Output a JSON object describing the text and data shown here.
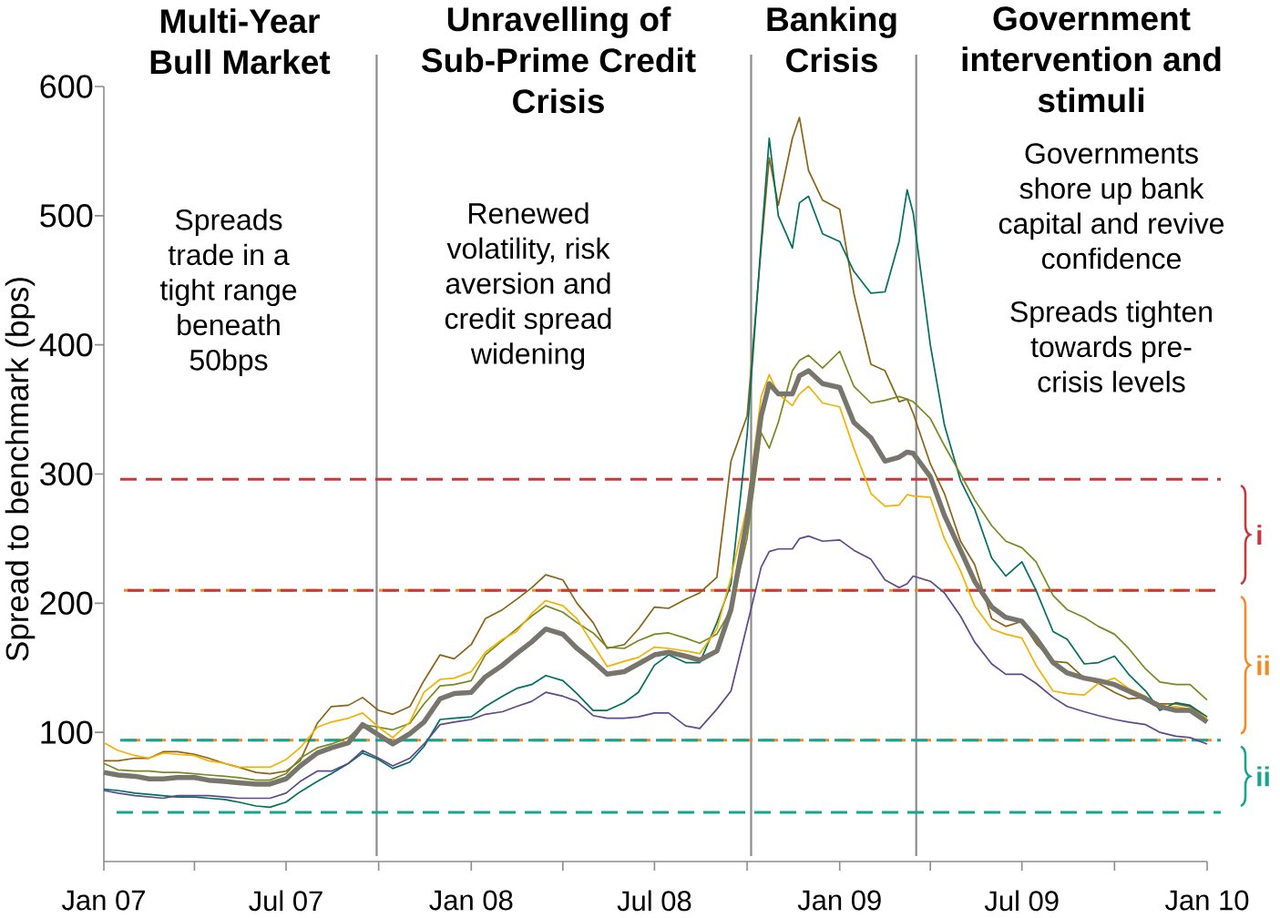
{
  "chart_data": {
    "type": "line",
    "ylabel": "Spread to benchmark (bps)",
    "x": [
      "2007-01-01",
      "2007-01-15",
      "2007-02-01",
      "2007-02-15",
      "2007-03-01",
      "2007-03-15",
      "2007-04-01",
      "2007-04-15",
      "2007-05-01",
      "2007-05-15",
      "2007-06-01",
      "2007-06-15",
      "2007-07-01",
      "2007-07-15",
      "2007-08-01",
      "2007-08-15",
      "2007-09-01",
      "2007-09-15",
      "2007-10-01",
      "2007-10-15",
      "2007-11-01",
      "2007-11-15",
      "2007-12-01",
      "2007-12-15",
      "2008-01-01",
      "2008-01-15",
      "2008-02-01",
      "2008-02-15",
      "2008-03-01",
      "2008-03-15",
      "2008-04-01",
      "2008-04-15",
      "2008-05-01",
      "2008-05-15",
      "2008-06-01",
      "2008-06-15",
      "2008-07-01",
      "2008-07-15",
      "2008-08-01",
      "2008-08-15",
      "2008-09-01",
      "2008-09-15",
      "2008-10-01",
      "2008-10-15",
      "2008-10-23",
      "2008-11-01",
      "2008-11-15",
      "2008-11-22",
      "2008-12-01",
      "2008-12-15",
      "2009-01-01",
      "2009-01-15",
      "2009-02-01",
      "2009-02-15",
      "2009-03-01",
      "2009-03-09",
      "2009-03-15",
      "2009-04-01",
      "2009-04-15",
      "2009-05-01",
      "2009-05-15",
      "2009-06-01",
      "2009-06-15",
      "2009-07-01",
      "2009-07-15",
      "2009-08-01",
      "2009-08-15",
      "2009-09-01",
      "2009-09-15",
      "2009-10-01",
      "2009-10-15",
      "2009-11-01",
      "2009-11-15",
      "2009-12-01",
      "2009-12-15",
      "2010-01-01"
    ],
    "series": [
      {
        "color": "#8a6316",
        "values": [
          78,
          78,
          80,
          80,
          85,
          85,
          83,
          80,
          76,
          73,
          69,
          68,
          70,
          78,
          107,
          120,
          121,
          127,
          117,
          114,
          120,
          140,
          160,
          157,
          168,
          188,
          195,
          203,
          212,
          222,
          218,
          200,
          185,
          165,
          168,
          180,
          197,
          196,
          203,
          208,
          220,
          310,
          345,
          475,
          545,
          508,
          560,
          576,
          535,
          512,
          505,
          440,
          385,
          380,
          356,
          358,
          347,
          308,
          285,
          248,
          230,
          188,
          182,
          186,
          169,
          155,
          154,
          142,
          138,
          131,
          126,
          127,
          122,
          122,
          120,
          111
        ]
      },
      {
        "color": "#006f5f",
        "values": [
          56,
          55,
          53,
          52,
          51,
          50,
          50,
          49,
          48,
          46,
          43,
          42,
          46,
          54,
          62,
          68,
          76,
          84,
          79,
          72,
          77,
          89,
          110,
          111,
          112,
          120,
          128,
          134,
          137,
          144,
          140,
          130,
          117,
          117,
          123,
          131,
          152,
          160,
          154,
          154,
          185,
          215,
          330,
          480,
          560,
          500,
          475,
          510,
          515,
          486,
          480,
          457,
          440,
          441,
          480,
          520,
          502,
          400,
          338,
          295,
          273,
          235,
          221,
          232,
          210,
          178,
          172,
          153,
          154,
          159,
          145,
          132,
          117,
          123,
          121,
          112
        ]
      },
      {
        "color": "#758a1f",
        "values": [
          76,
          71,
          70,
          70,
          69,
          69,
          68,
          67,
          66,
          65,
          63,
          63,
          68,
          80,
          88,
          91,
          96,
          106,
          104,
          102,
          107,
          122,
          136,
          137,
          140,
          160,
          171,
          180,
          190,
          198,
          193,
          185,
          177,
          166,
          165,
          171,
          176,
          177,
          173,
          169,
          176,
          195,
          250,
          332,
          320,
          340,
          380,
          388,
          392,
          382,
          395,
          368,
          355,
          357,
          360,
          358,
          356,
          343,
          322,
          300,
          280,
          260,
          248,
          243,
          232,
          206,
          195,
          189,
          182,
          176,
          165,
          149,
          139,
          137,
          137,
          125
        ]
      },
      {
        "color": "#f2b200",
        "values": [
          92,
          86,
          82,
          80,
          84,
          83,
          82,
          78,
          76,
          73,
          73,
          73,
          79,
          88,
          104,
          108,
          111,
          115,
          104,
          96,
          108,
          131,
          141,
          142,
          147,
          162,
          172,
          178,
          192,
          202,
          198,
          188,
          168,
          151,
          155,
          158,
          166,
          165,
          163,
          161,
          180,
          220,
          275,
          360,
          377,
          362,
          353,
          362,
          368,
          355,
          352,
          320,
          285,
          275,
          276,
          284,
          283,
          282,
          250,
          225,
          198,
          180,
          176,
          173,
          152,
          132,
          130,
          129,
          138,
          142,
          134,
          128,
          119,
          120,
          118,
          111
        ]
      },
      {
        "color": "#5d4a8a",
        "values": [
          55,
          53,
          51,
          50,
          49,
          51,
          51,
          51,
          50,
          49,
          49,
          49,
          53,
          62,
          70,
          70,
          76,
          86,
          80,
          74,
          80,
          91,
          106,
          108,
          110,
          114,
          116,
          120,
          124,
          131,
          128,
          124,
          113,
          111,
          111,
          112,
          115,
          115,
          105,
          103,
          118,
          132,
          183,
          228,
          240,
          242,
          242,
          250,
          252,
          248,
          249,
          241,
          234,
          218,
          212,
          215,
          221,
          217,
          208,
          190,
          170,
          153,
          145,
          145,
          138,
          127,
          120,
          116,
          113,
          110,
          108,
          106,
          100,
          97,
          96,
          91
        ]
      },
      {
        "color": "#78756d",
        "values": [
          69,
          67,
          66,
          64,
          64,
          65,
          65,
          63,
          62,
          61,
          60,
          60,
          64,
          74,
          84,
          88,
          92,
          106,
          98,
          91,
          99,
          108,
          126,
          130,
          131,
          143,
          152,
          161,
          170,
          180,
          176,
          165,
          155,
          145,
          147,
          153,
          160,
          162,
          159,
          156,
          163,
          195,
          265,
          345,
          370,
          362,
          362,
          376,
          380,
          370,
          367,
          340,
          328,
          310,
          313,
          317,
          316,
          298,
          268,
          241,
          217,
          197,
          189,
          186,
          173,
          154,
          146,
          142,
          140,
          137,
          132,
          126,
          120,
          117,
          117,
          108
        ]
      }
    ],
    "xlim": [
      "2007-01-01",
      "2010-01-01"
    ],
    "ylim": [
      0,
      600
    ],
    "xticks": [
      {
        "value": "2007-01-01",
        "label": "Jan 07"
      },
      {
        "value": "2007-04-01",
        "label": null
      },
      {
        "value": "2007-07-01",
        "label": "Jul 07"
      },
      {
        "value": "2007-10-01",
        "label": null
      },
      {
        "value": "2008-01-01",
        "label": "Jan 08"
      },
      {
        "value": "2008-04-01",
        "label": null
      },
      {
        "value": "2008-07-01",
        "label": "Jul 08"
      },
      {
        "value": "2008-10-01",
        "label": null
      },
      {
        "value": "2009-01-01",
        "label": "Jan 09"
      },
      {
        "value": "2009-04-01",
        "label": null
      },
      {
        "value": "2009-07-01",
        "label": "Jul 09"
      },
      {
        "value": "2009-10-01",
        "label": null
      },
      {
        "value": "2010-01-01",
        "label": "Jan 10"
      }
    ],
    "yticks": [
      100,
      200,
      300,
      400,
      500,
      600
    ],
    "ref_lines": [
      {
        "axis": "x",
        "value": "2007-09-29",
        "color": "#8c8c8c"
      },
      {
        "axis": "x",
        "value": "2008-10-05",
        "color": "#8c8c8c"
      },
      {
        "axis": "x",
        "value": "2009-03-18",
        "color": "#8c8c8c"
      },
      {
        "axis": "y",
        "value": 210,
        "color": "#f18b25",
        "line_style": "dashed"
      },
      {
        "axis": "y",
        "value": 94,
        "color": "#f18b25",
        "line_style": "dashed"
      },
      {
        "axis": "y",
        "value": 296,
        "color": "#c8393d",
        "line_style": "dashed"
      },
      {
        "axis": "y",
        "value": 210,
        "color": "#c8393d",
        "line_style": "dashed"
      },
      {
        "axis": "y",
        "value": 94,
        "color": "#17a590",
        "line_style": "dashed"
      },
      {
        "axis": "y",
        "value": 38,
        "color": "#17a590",
        "line_style": "dashed"
      }
    ],
    "annotations": [
      "Multi-Year Bull Market",
      "Unravelling of Sub-Prime Credit Crisis",
      "Banking Crisis",
      "Government intervention and stimuli",
      "Spreads trade in a tight range beneath 50bps",
      "Renewed volatility, risk aversion and credit spread widening",
      "Governments shore up bank capital and revive confidence",
      "Spreads tighten towards pre-crisis levels",
      "i",
      "ii",
      "ii"
    ]
  }
}
